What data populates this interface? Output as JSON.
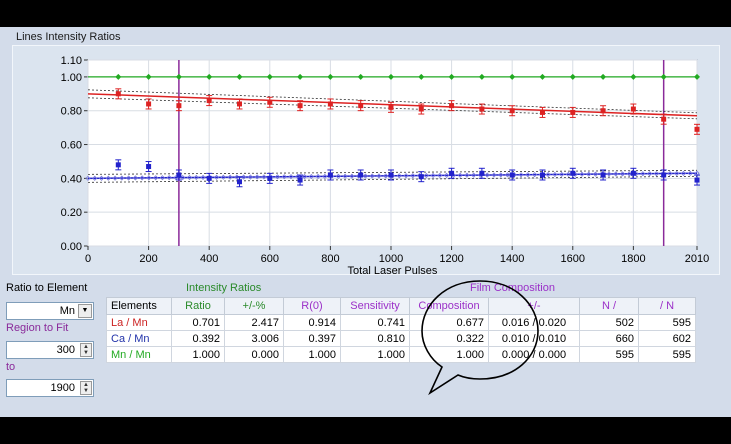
{
  "chart_data": {
    "type": "scatter",
    "title": "Lines Intensity Ratios",
    "xlabel": "Total Laser Pulses",
    "ylabel": "",
    "xlim": [
      0,
      2010
    ],
    "ylim": [
      0,
      1.1
    ],
    "x_ticks": [
      "0",
      "200",
      "400",
      "600",
      "800",
      "1000",
      "1200",
      "1400",
      "1600",
      "1800",
      "2010"
    ],
    "y_ticks": [
      "0.00",
      "0.20",
      "0.40",
      "0.60",
      "0.80",
      "1.00",
      "1.10"
    ],
    "x": [
      100,
      200,
      300,
      400,
      500,
      600,
      700,
      800,
      900,
      1000,
      1100,
      1200,
      1300,
      1400,
      1500,
      1600,
      1700,
      1800,
      1900,
      2010
    ],
    "series": [
      {
        "color": "#22aa22",
        "values": [
          1.0,
          1.0,
          1.0,
          1.0,
          1.0,
          1.0,
          1.0,
          1.0,
          1.0,
          1.0,
          1.0,
          1.0,
          1.0,
          1.0,
          1.0,
          1.0,
          1.0,
          1.0,
          1.0,
          1.0
        ]
      },
      {
        "color": "#dd2222",
        "values": [
          0.9,
          0.84,
          0.83,
          0.86,
          0.84,
          0.85,
          0.83,
          0.84,
          0.83,
          0.82,
          0.81,
          0.83,
          0.81,
          0.8,
          0.79,
          0.79,
          0.8,
          0.81,
          0.75,
          0.69
        ]
      },
      {
        "color": "#2222cc",
        "values": [
          0.48,
          0.47,
          0.42,
          0.4,
          0.38,
          0.4,
          0.39,
          0.42,
          0.42,
          0.42,
          0.41,
          0.43,
          0.43,
          0.42,
          0.42,
          0.43,
          0.42,
          0.43,
          0.42,
          0.39
        ]
      }
    ],
    "fit_lines": [
      {
        "color": "#dd2222",
        "y_start": 0.9,
        "y_end": 0.77
      },
      {
        "color": "#2222cc",
        "y_start": 0.4,
        "y_end": 0.43
      }
    ],
    "region_markers_x": [
      300,
      1900
    ],
    "grid": true
  },
  "controls": {
    "ratio_label": "Ratio to Element",
    "ratio_value": "Mn",
    "region_label": "Region to Fit",
    "region_from": "300",
    "to_label": "to",
    "region_to": "1900"
  },
  "table": {
    "group_intensity": "Intensity Ratios",
    "group_film": "Film Composition",
    "headers": [
      "Elements",
      "Ratio",
      "+/-%",
      "R(0)",
      "Sensitivity",
      "Composition",
      "+/-",
      "N /",
      "/ N"
    ],
    "rows": [
      {
        "color": "#cc2222",
        "cells": [
          "La / Mn",
          "0.701",
          "2.417",
          "0.914",
          "0.741",
          "0.677",
          "0.016 / 0.020",
          "502",
          "595"
        ]
      },
      {
        "color": "#2233aa",
        "cells": [
          "Ca / Mn",
          "0.392",
          "3.006",
          "0.397",
          "0.810",
          "0.322",
          "0.010 / 0.010",
          "660",
          "602"
        ]
      },
      {
        "color": "#22aa22",
        "cells": [
          "Mn / Mn",
          "1.000",
          "0.000",
          "1.000",
          "1.000",
          "1.000",
          "0.000 / 0.000",
          "595",
          "595"
        ]
      }
    ]
  },
  "colors": {
    "background": "#000000",
    "panel": "#d3dcea",
    "header_green": "#2a8a2a",
    "header_purple": "#9b30c8",
    "region_line": "#8a2a9a"
  }
}
